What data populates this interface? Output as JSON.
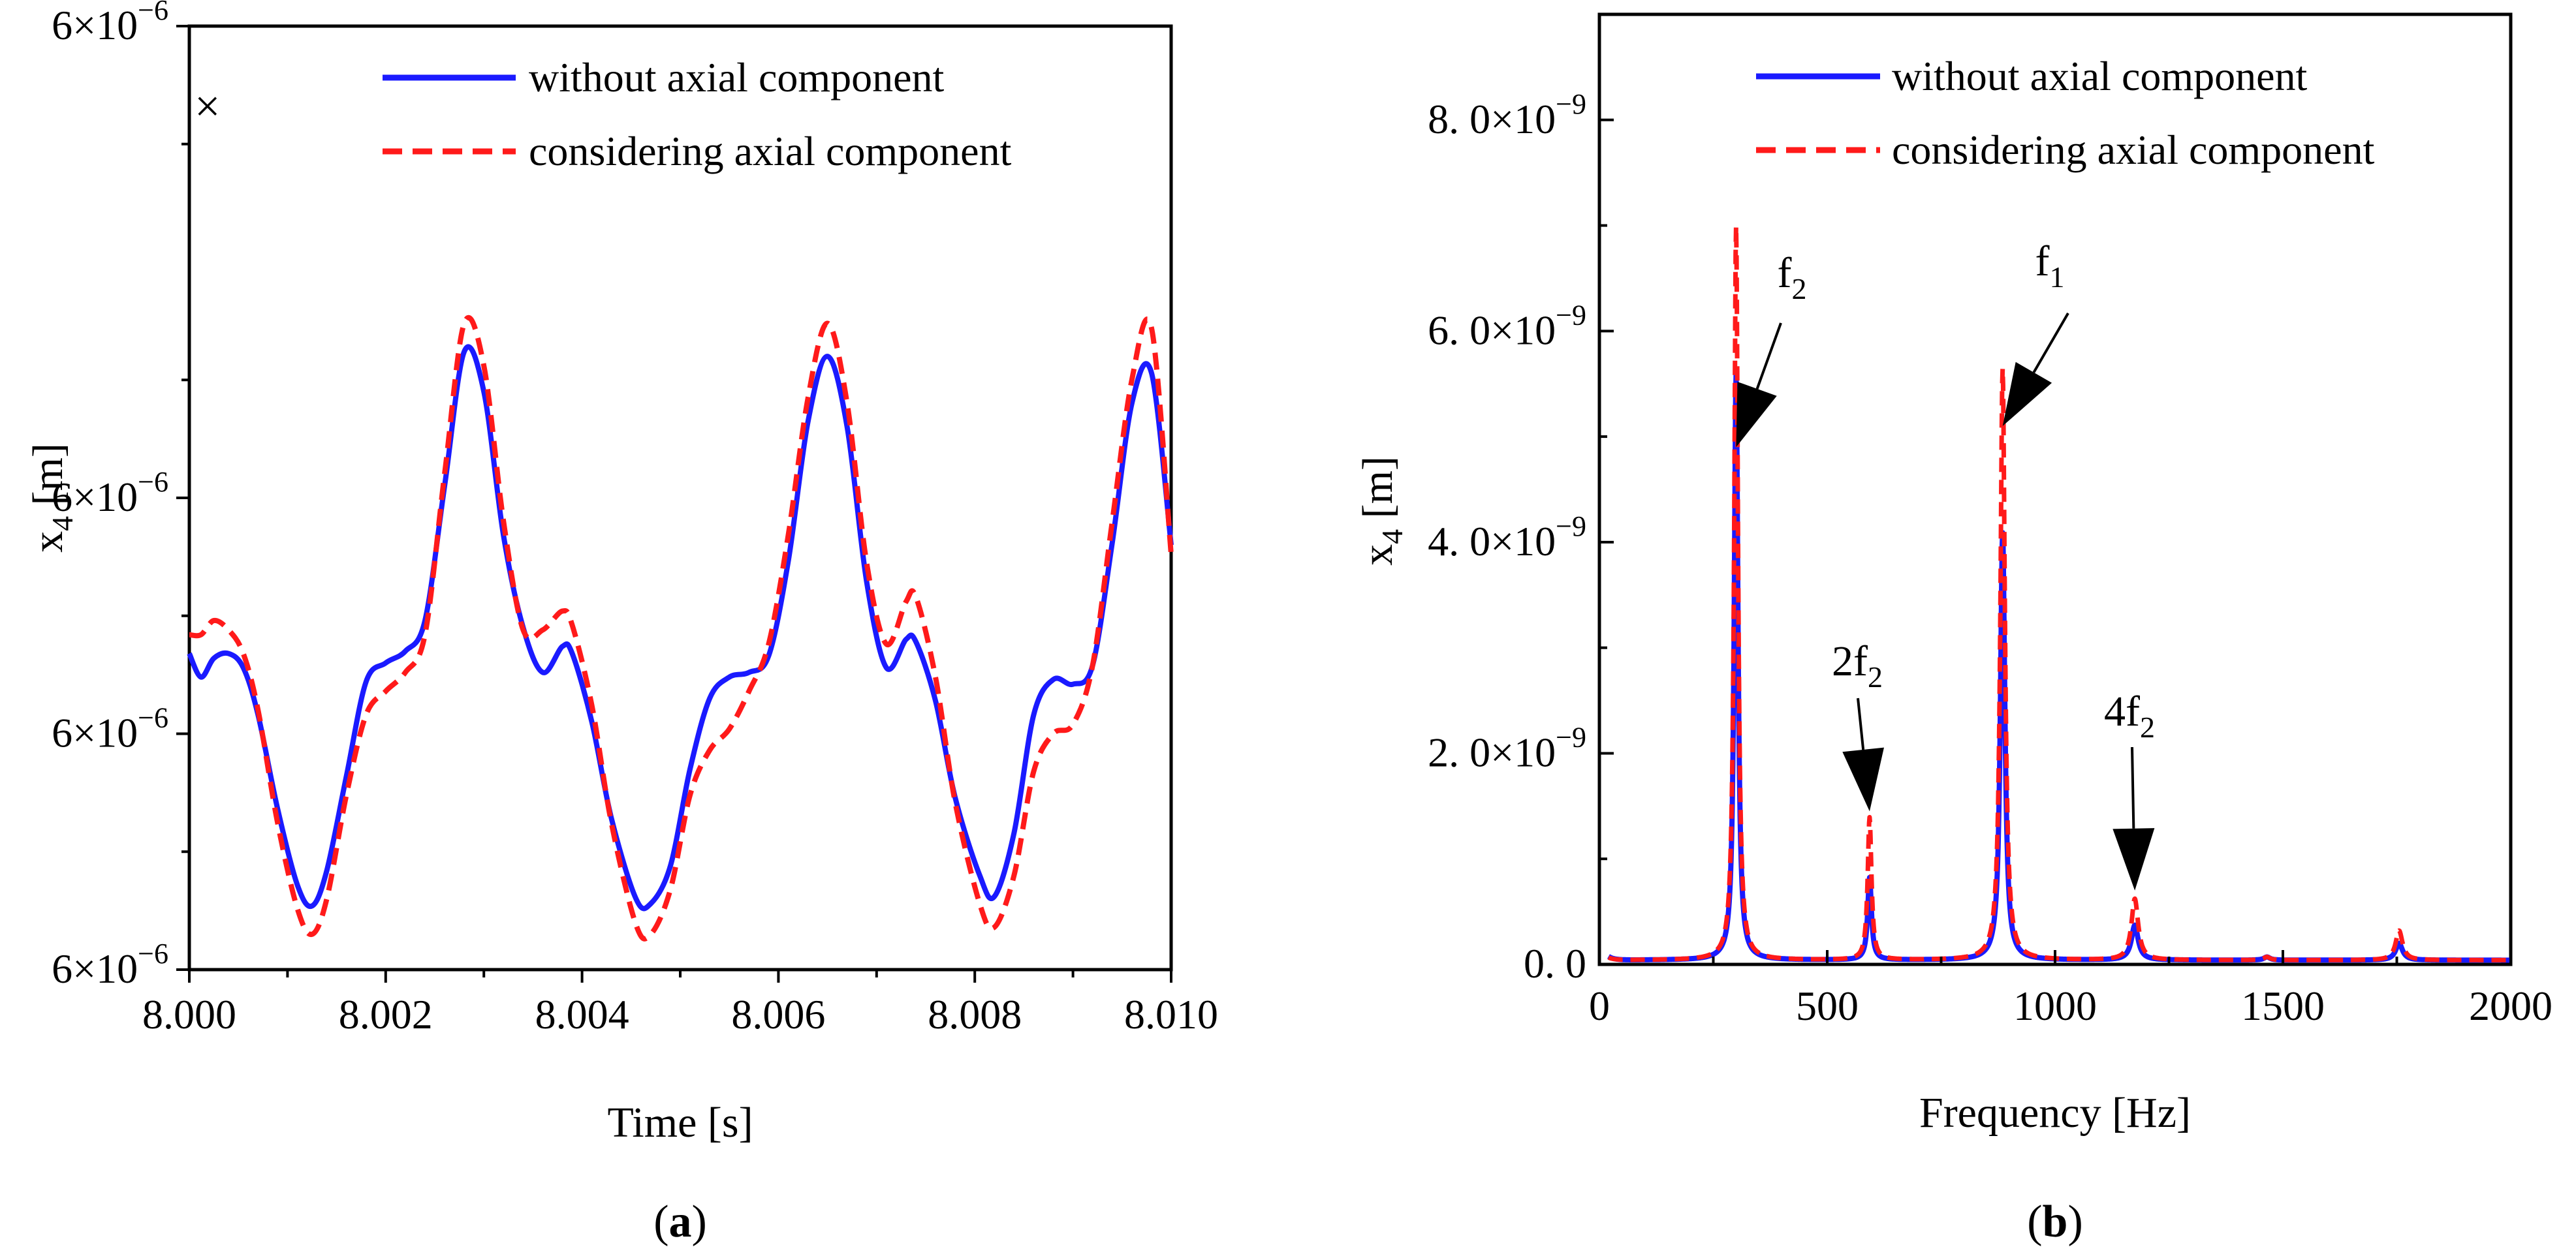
{
  "chart_data": [
    {
      "type": "line",
      "caption_letter": "a",
      "xlabel": "Time [s]",
      "ylabel_main": "x",
      "ylabel_sub": "4",
      "ylabel_unit": " [m]",
      "xlim": [
        8.0,
        8.01
      ],
      "ylim": [
        0,
        4
      ],
      "x_ticks": [
        {
          "value": 8.0,
          "label": "8.000"
        },
        {
          "value": 8.002,
          "label": "8.002"
        },
        {
          "value": 8.004,
          "label": "8.004"
        },
        {
          "value": 8.006,
          "label": "8.006"
        },
        {
          "value": 8.008,
          "label": "8.008"
        },
        {
          "value": 8.01,
          "label": "8.010"
        }
      ],
      "y_ticks": [
        {
          "value": 0,
          "label_base": "6×10",
          "label_exp": "−6"
        },
        {
          "value": 1,
          "label_base": "6×10",
          "label_exp": "−6"
        },
        {
          "value": 2,
          "label_base": "6×10",
          "label_exp": "−6"
        },
        {
          "value": 4,
          "label_base": "6×10",
          "label_exp": "−6"
        }
      ],
      "y_minor_ticks": [
        0.5,
        1.5,
        2.5,
        3.5
      ],
      "stray_marker": "×",
      "legend": [
        {
          "label": "without axial component",
          "color": "#1a1aff",
          "dash": "solid"
        },
        {
          "label": "considering axial component",
          "color": "#ff1a1a",
          "dash": "dashed"
        }
      ],
      "series": [
        {
          "name": "without axial component",
          "color": "#1a1aff",
          "x": [
            8.0,
            8.00012,
            8.00025,
            8.0004,
            8.00055,
            8.0007,
            8.0009,
            8.0011,
            8.00125,
            8.0014,
            8.0016,
            8.0018,
            8.002,
            8.0022,
            8.0024,
            8.0026,
            8.0028,
            8.003,
            8.0032,
            8.0034,
            8.0036,
            8.0038,
            8.0039,
            8.0041,
            8.0043,
            8.00455,
            8.0047,
            8.0049,
            8.0051,
            8.0053,
            8.0055,
            8.0057,
            8.0059,
            8.0061,
            8.0063,
            8.0065,
            8.0067,
            8.0069,
            8.0071,
            8.0073,
            8.0074,
            8.0076,
            8.0078,
            8.00805,
            8.0082,
            8.0084,
            8.0086,
            8.0088,
            8.009,
            8.0092,
            8.0094,
            8.0096,
            8.0098,
            8.01
          ],
          "y": [
            1.34,
            1.24,
            1.32,
            1.34,
            1.28,
            1.08,
            0.68,
            0.36,
            0.27,
            0.42,
            0.82,
            1.22,
            1.3,
            1.35,
            1.48,
            2.05,
            2.62,
            2.45,
            1.84,
            1.45,
            1.26,
            1.37,
            1.34,
            1.05,
            0.64,
            0.3,
            0.28,
            0.44,
            0.85,
            1.15,
            1.24,
            1.26,
            1.33,
            1.73,
            2.32,
            2.6,
            2.3,
            1.64,
            1.28,
            1.4,
            1.39,
            1.14,
            0.73,
            0.4,
            0.31,
            0.58,
            1.08,
            1.23,
            1.21,
            1.29,
            1.81,
            2.4,
            2.53,
            1.8
          ]
        },
        {
          "name": "considering axial component",
          "color": "#ff1a1a",
          "x": [
            8.0,
            8.00012,
            8.00025,
            8.0004,
            8.00055,
            8.0007,
            8.0009,
            8.0011,
            8.00125,
            8.0014,
            8.0016,
            8.0018,
            8.002,
            8.0022,
            8.0024,
            8.0026,
            8.0028,
            8.003,
            8.0032,
            8.0034,
            8.0036,
            8.0038,
            8.0039,
            8.0041,
            8.0043,
            8.00455,
            8.0047,
            8.0049,
            8.0051,
            8.0053,
            8.0055,
            8.0057,
            8.0059,
            8.0061,
            8.0063,
            8.0065,
            8.0067,
            8.0069,
            8.0071,
            8.0073,
            8.0074,
            8.0076,
            8.0078,
            8.00805,
            8.0082,
            8.0084,
            8.0086,
            8.0088,
            8.009,
            8.0092,
            8.0094,
            8.0096,
            8.0098,
            8.01
          ],
          "y": [
            1.42,
            1.42,
            1.48,
            1.44,
            1.34,
            1.1,
            0.62,
            0.26,
            0.15,
            0.3,
            0.74,
            1.08,
            1.18,
            1.26,
            1.42,
            2.1,
            2.74,
            2.56,
            1.9,
            1.44,
            1.44,
            1.52,
            1.46,
            1.12,
            0.62,
            0.19,
            0.15,
            0.34,
            0.74,
            0.93,
            1.02,
            1.18,
            1.38,
            1.84,
            2.42,
            2.74,
            2.4,
            1.72,
            1.38,
            1.56,
            1.58,
            1.24,
            0.71,
            0.28,
            0.18,
            0.4,
            0.84,
            1.0,
            1.04,
            1.29,
            1.9,
            2.5,
            2.72,
            1.76
          ]
        }
      ]
    },
    {
      "type": "line",
      "caption_letter": "b",
      "xlabel": "Frequency [Hz]",
      "ylabel_main": "x",
      "ylabel_sub": "4",
      "ylabel_unit": " [m]",
      "xlim": [
        0,
        2000
      ],
      "ylim": [
        0,
        9e-09
      ],
      "x_ticks": [
        {
          "value": 0,
          "label": "0"
        },
        {
          "value": 500,
          "label": "500"
        },
        {
          "value": 1000,
          "label": "1000"
        },
        {
          "value": 1500,
          "label": "1500"
        },
        {
          "value": 2000,
          "label": "2000"
        }
      ],
      "y_ticks": [
        {
          "value": 0,
          "label_base": "0. 0",
          "label_exp": ""
        },
        {
          "value": 2e-09,
          "label_base": "2. 0×10",
          "label_exp": "−9"
        },
        {
          "value": 4e-09,
          "label_base": "4. 0×10",
          "label_exp": "−9"
        },
        {
          "value": 6e-09,
          "label_base": "6. 0×10",
          "label_exp": "−9"
        },
        {
          "value": 8e-09,
          "label_base": "8. 0×10",
          "label_exp": "−9"
        }
      ],
      "legend": [
        {
          "label": "without axial component",
          "color": "#1a1aff",
          "dash": "solid"
        },
        {
          "label": "considering axial component",
          "color": "#ff1a1a",
          "dash": "dashed"
        }
      ],
      "annotations": [
        {
          "id": "f2",
          "main": "f",
          "sub": "2",
          "tip_x": 300,
          "tip_y": 4.9e-09
        },
        {
          "id": "f1",
          "main": "f",
          "sub": "1",
          "tip_x": 885,
          "tip_y": 5.1e-09
        },
        {
          "id": "2f2",
          "main": "2f",
          "sub": "2",
          "tip_x": 593,
          "tip_y": 1.45e-09
        },
        {
          "id": "4f2",
          "main": "4f",
          "sub": "2",
          "tip_x": 1175,
          "tip_y": 7e-10
        }
      ],
      "series": [
        {
          "name": "without axial component",
          "color": "#1a1aff",
          "peaks": [
            {
              "f": 300,
              "amp": 5.55e-09,
              "width": 5
            },
            {
              "f": 593,
              "amp": 7.8e-10,
              "width": 5
            },
            {
              "f": 885,
              "amp": 4.05e-09,
              "width": 6
            },
            {
              "f": 1175,
              "amp": 3.3e-10,
              "width": 9
            },
            {
              "f": 1465,
              "amp": 3e-11,
              "width": 8
            },
            {
              "f": 1755,
              "amp": 1.6e-10,
              "width": 9
            }
          ],
          "baseline": 4e-11,
          "start_amp": 1.8e-10
        },
        {
          "name": "considering axial component",
          "color": "#ff1a1a",
          "peaks": [
            {
              "f": 300,
              "amp": 6.95e-09,
              "width": 5
            },
            {
              "f": 593,
              "amp": 1.35e-09,
              "width": 5
            },
            {
              "f": 885,
              "amp": 5.6e-09,
              "width": 6
            },
            {
              "f": 1175,
              "amp": 5.8e-10,
              "width": 9
            },
            {
              "f": 1465,
              "amp": 3e-11,
              "width": 8
            },
            {
              "f": 1755,
              "amp": 2.8e-10,
              "width": 9
            }
          ],
          "baseline": 4e-11,
          "start_amp": 1.2e-10
        }
      ]
    }
  ]
}
